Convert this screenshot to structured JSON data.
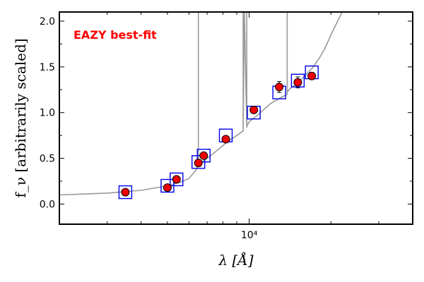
{
  "chart_data": {
    "type": "scatter",
    "title": "",
    "xlabel": "λ [Å]",
    "ylabel": "f_ν [arbitrarily scaled]",
    "xscale": "log",
    "xlim": [
      2000,
      40000
    ],
    "ylim": [
      -0.22,
      2.1
    ],
    "grid": false,
    "annotation": {
      "text": "EAZY best-fit",
      "color": "#ff0000",
      "placement": "top-left"
    },
    "x_ticks": [
      {
        "value": 10000,
        "label": "10⁴"
      }
    ],
    "y_ticks": [
      {
        "value": 0.0,
        "label": "0.0"
      },
      {
        "value": 0.5,
        "label": "0.5"
      },
      {
        "value": 1.0,
        "label": "1.0"
      },
      {
        "value": 1.5,
        "label": "1.5"
      },
      {
        "value": 2.0,
        "label": "2.0"
      }
    ],
    "series": [
      {
        "type": "line",
        "color": "#999999",
        "x": [
          2000,
          3000,
          4000,
          5000,
          5600,
          6000,
          6200,
          6400,
          6500,
          6500,
          6500,
          6700,
          7000,
          7500,
          8000,
          8500,
          9000,
          9500,
          9500,
          9500,
          9600,
          9800,
          9800,
          9800,
          10000,
          10500,
          11000,
          12000,
          13000,
          13800,
          13800,
          13800,
          14000,
          15000,
          16000,
          17000,
          18000,
          19000,
          20000,
          21000,
          22000
        ],
        "y": [
          0.1,
          0.12,
          0.15,
          0.2,
          0.24,
          0.28,
          0.33,
          0.38,
          0.43,
          2.1,
          0.43,
          0.46,
          0.5,
          0.57,
          0.64,
          0.7,
          0.75,
          0.8,
          2.1,
          0.82,
          2.1,
          0.84,
          2.1,
          0.85,
          0.9,
          0.95,
          1.0,
          1.1,
          1.16,
          1.2,
          2.1,
          1.22,
          1.25,
          1.32,
          1.4,
          1.48,
          1.58,
          1.7,
          1.85,
          1.98,
          2.1
        ]
      },
      {
        "type": "model-photometry",
        "marker": "square",
        "color": "#0000ee",
        "x": [
          3500,
          5000,
          5400,
          6500,
          6800,
          8200,
          10400,
          12900,
          15100,
          17000
        ],
        "y": [
          0.13,
          0.2,
          0.27,
          0.46,
          0.53,
          0.75,
          1.0,
          1.22,
          1.35,
          1.44
        ]
      },
      {
        "type": "observed",
        "marker": "circle",
        "color": "#ee0000",
        "x": [
          3500,
          5000,
          5400,
          6500,
          6800,
          8200,
          10400,
          12900,
          15100,
          17000
        ],
        "y": [
          0.13,
          0.18,
          0.27,
          0.45,
          0.53,
          0.71,
          1.03,
          1.28,
          1.33,
          1.4
        ],
        "yerr": [
          0.02,
          0.02,
          0.02,
          0.02,
          0.02,
          0.03,
          0.03,
          0.06,
          0.06,
          0.04
        ]
      }
    ]
  }
}
